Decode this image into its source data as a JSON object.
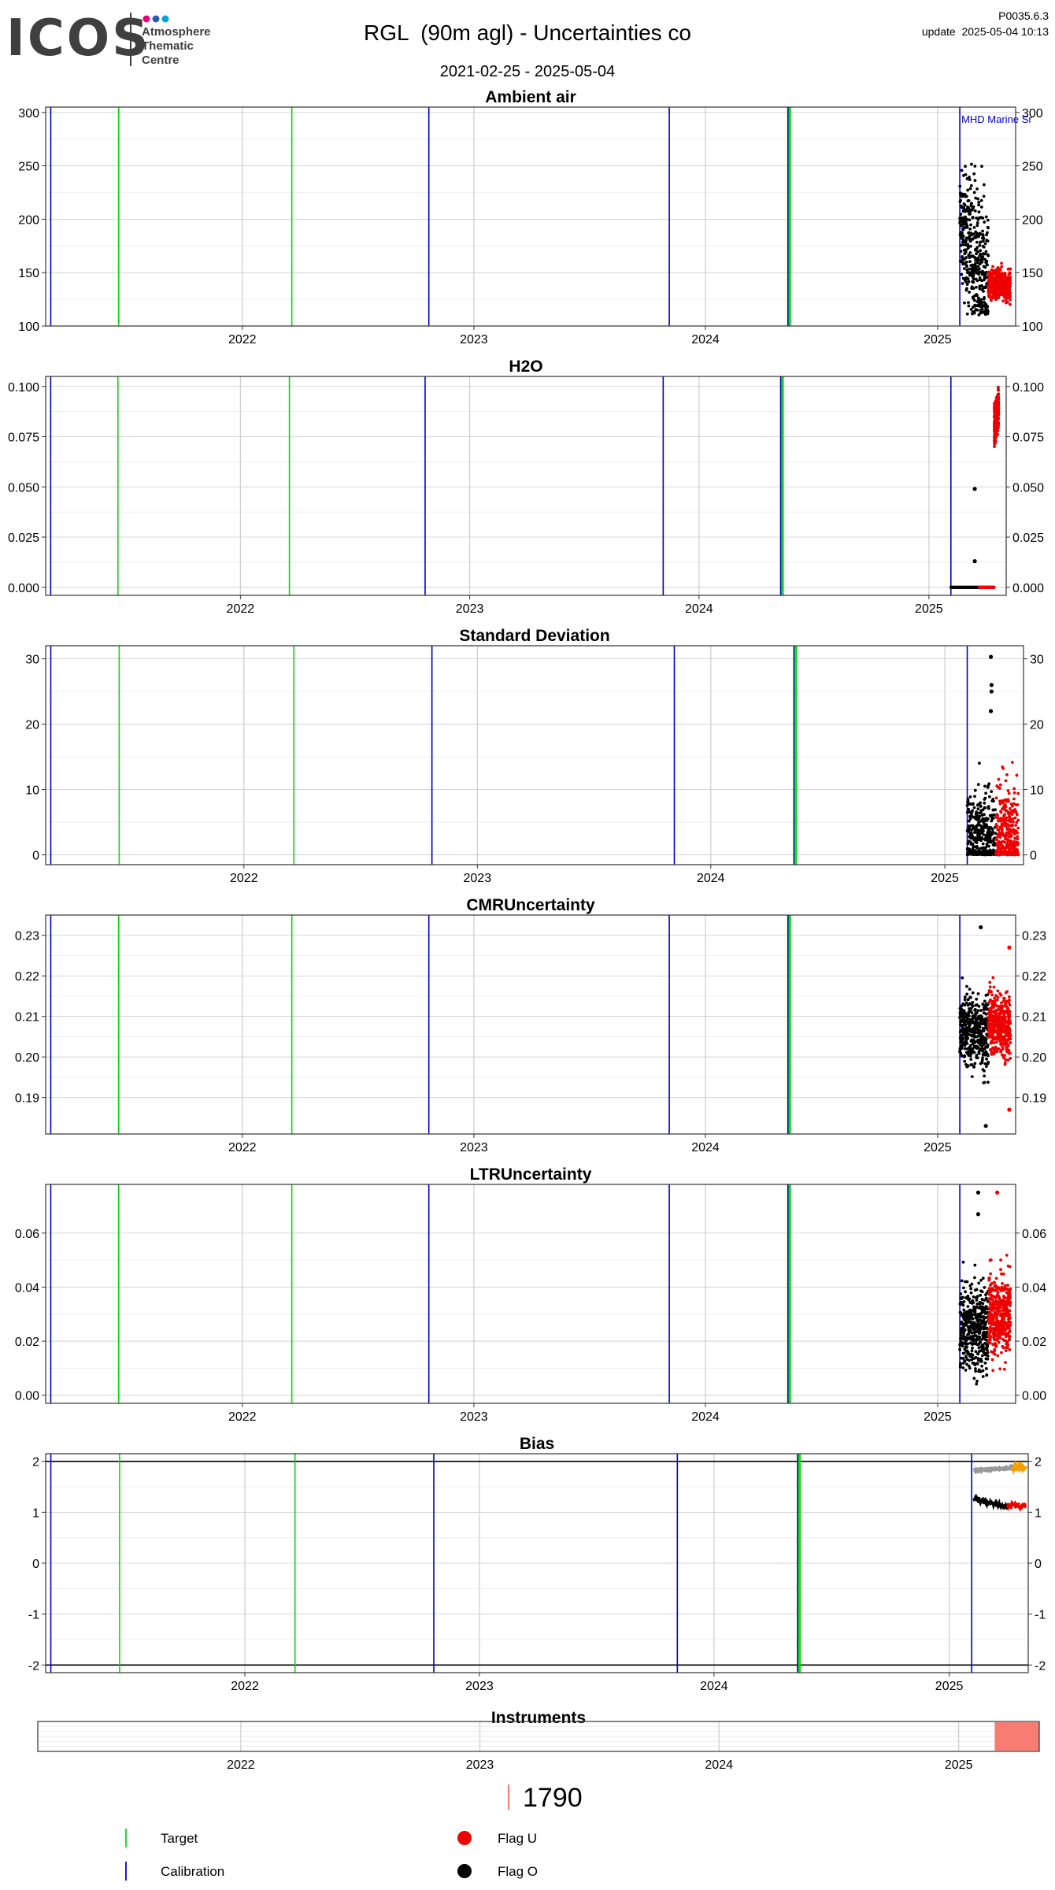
{
  "header": {
    "logo_word": "ICOS",
    "logo_lines": [
      "Atmosphere",
      "Thematic",
      "Centre"
    ],
    "logo_dot_colors": [
      "#e6007e",
      "#2a5caa",
      "#00a0dc"
    ],
    "title": "RGL  (90m agl) - Uncertainties co",
    "date_range": "2021-02-25 - 2025-05-04",
    "version": "P0035.6.3",
    "update": "update  2025-05-04 10:13"
  },
  "colors": {
    "target": "#00dd00",
    "calibration": "#0000cc",
    "flag_u": "#ee0000",
    "flag_o": "#000000",
    "bias_upper": "#999999",
    "bias_upper_recent": "#f0a000",
    "instrument": "#f87c72",
    "grid_major": "#cccccc",
    "grid_minor": "#ebebeb"
  },
  "chart_data": [
    {
      "type": "scatter",
      "title": "Ambient air",
      "x_range": [
        "2021-02-25",
        "2025-05-04"
      ],
      "x_ticks": [
        "2022",
        "2023",
        "2024",
        "2025"
      ],
      "ylim": [
        100,
        305
      ],
      "y_ticks": [
        "100",
        "150",
        "200",
        "250",
        "300"
      ],
      "y_tick_values": [
        100,
        150,
        200,
        250,
        300
      ],
      "annotation": "MHD Marine Sr",
      "series": [
        {
          "name": "Flag O",
          "x_start": "2025-02-05",
          "x_end": "2025-03-22",
          "y_min": 110,
          "y_max": 290,
          "center_start": 195,
          "center_end": 140
        },
        {
          "name": "Flag U",
          "x_start": "2025-03-22",
          "x_end": "2025-04-26",
          "y_min": 120,
          "y_max": 165,
          "center_start": 140,
          "center_end": 138
        }
      ]
    },
    {
      "type": "scatter",
      "title": "H2O",
      "x_range": [
        "2021-02-25",
        "2025-05-04"
      ],
      "x_ticks": [
        "2022",
        "2023",
        "2024",
        "2025"
      ],
      "ylim": [
        -0.004,
        0.105
      ],
      "y_ticks": [
        "0.000",
        "0.025",
        "0.050",
        "0.075",
        "0.100"
      ],
      "y_tick_values": [
        0,
        0.025,
        0.05,
        0.075,
        0.1
      ],
      "series": [
        {
          "name": "Flag O",
          "x_start": "2025-02-05",
          "x_end": "2025-03-22",
          "y_min": 0,
          "y_max": 0,
          "center_start": 0,
          "center_end": 0
        },
        {
          "name": "Flag U",
          "x_start": "2025-03-22",
          "x_end": "2025-04-15",
          "y_min": 0,
          "y_max": 0,
          "center_start": 0,
          "center_end": 0
        },
        {
          "name": "Flag U",
          "x_start": "2025-04-15",
          "x_end": "2025-04-22",
          "y_min": 0.07,
          "y_max": 0.1,
          "center_start": 0.08,
          "center_end": 0.09
        }
      ],
      "points": [
        {
          "series": "Flag O",
          "x": "2025-03-15",
          "y": 0.049
        },
        {
          "series": "Flag O",
          "x": "2025-03-15",
          "y": 0.013
        }
      ]
    },
    {
      "type": "scatter",
      "title": "Standard Deviation",
      "x_range": [
        "2021-02-25",
        "2025-05-04"
      ],
      "x_ticks": [
        "2022",
        "2023",
        "2024",
        "2025"
      ],
      "ylim": [
        -1.5,
        32
      ],
      "y_ticks": [
        "0",
        "10",
        "20",
        "30"
      ],
      "y_tick_values": [
        0,
        10,
        20,
        30
      ],
      "series": [
        {
          "name": "Flag O",
          "x_start": "2025-02-05",
          "x_end": "2025-03-22",
          "y_min": 0,
          "y_max": 17,
          "center_start": 2,
          "center_end": 2
        },
        {
          "name": "Flag U",
          "x_start": "2025-03-22",
          "x_end": "2025-04-26",
          "y_min": 0,
          "y_max": 18,
          "center_start": 1.5,
          "center_end": 1.5
        }
      ],
      "points": [
        {
          "series": "Flag O",
          "x": "2025-03-14",
          "y": 30.3
        },
        {
          "series": "Flag O",
          "x": "2025-03-15",
          "y": 26
        },
        {
          "series": "Flag O",
          "x": "2025-03-15",
          "y": 25
        },
        {
          "series": "Flag O",
          "x": "2025-03-14",
          "y": 22
        }
      ]
    },
    {
      "type": "scatter",
      "title": "CMRUncertainty",
      "x_range": [
        "2021-02-25",
        "2025-05-04"
      ],
      "x_ticks": [
        "2022",
        "2023",
        "2024",
        "2025"
      ],
      "ylim": [
        0.181,
        0.235
      ],
      "y_ticks": [
        "0.19",
        "0.20",
        "0.21",
        "0.22",
        "0.23"
      ],
      "y_tick_values": [
        0.19,
        0.2,
        0.21,
        0.22,
        0.23
      ],
      "series": [
        {
          "name": "Flag O",
          "x_start": "2025-02-05",
          "x_end": "2025-03-22",
          "y_min": 0.193,
          "y_max": 0.223,
          "center_start": 0.207,
          "center_end": 0.206
        },
        {
          "name": "Flag U",
          "x_start": "2025-03-22",
          "x_end": "2025-04-26",
          "y_min": 0.196,
          "y_max": 0.222,
          "center_start": 0.209,
          "center_end": 0.207
        }
      ],
      "points": [
        {
          "series": "Flag O",
          "x": "2025-03-10",
          "y": 0.232
        },
        {
          "series": "Flag O",
          "x": "2025-03-18",
          "y": 0.183
        },
        {
          "series": "Flag U",
          "x": "2025-04-24",
          "y": 0.227
        },
        {
          "series": "Flag U",
          "x": "2025-04-24",
          "y": 0.187
        }
      ]
    },
    {
      "type": "scatter",
      "title": "LTRUncertainty",
      "x_range": [
        "2021-02-25",
        "2025-05-04"
      ],
      "x_ticks": [
        "2022",
        "2023",
        "2024",
        "2025"
      ],
      "ylim": [
        -0.003,
        0.078
      ],
      "y_ticks": [
        "0.00",
        "0.02",
        "0.04",
        "0.06"
      ],
      "y_tick_values": [
        0,
        0.02,
        0.04,
        0.06
      ],
      "series": [
        {
          "name": "Flag O",
          "x_start": "2025-02-05",
          "x_end": "2025-03-22",
          "y_min": 0.003,
          "y_max": 0.055,
          "center_start": 0.025,
          "center_end": 0.025
        },
        {
          "name": "Flag U",
          "x_start": "2025-03-22",
          "x_end": "2025-04-26",
          "y_min": 0.008,
          "y_max": 0.058,
          "center_start": 0.03,
          "center_end": 0.03
        }
      ],
      "points": [
        {
          "series": "Flag O",
          "x": "2025-03-06",
          "y": 0.075
        },
        {
          "series": "Flag O",
          "x": "2025-03-06",
          "y": 0.067
        },
        {
          "series": "Flag U",
          "x": "2025-04-05",
          "y": 0.075
        }
      ]
    },
    {
      "type": "line",
      "title": "Bias",
      "x_range": [
        "2021-02-25",
        "2025-05-04"
      ],
      "x_ticks": [
        "2022",
        "2023",
        "2024",
        "2025"
      ],
      "ylim": [
        -2.15,
        2.15
      ],
      "y_ticks": [
        "-2",
        "-1",
        "0",
        "1",
        "2"
      ],
      "y_tick_values": [
        -2,
        -1,
        0,
        1,
        2
      ],
      "reference_lines": [
        2,
        -2
      ],
      "series": [
        {
          "name": "Flag O",
          "x_start": "2025-02-08",
          "x_end": "2025-04-02",
          "y_start": 1.25,
          "y_end": 1.1
        },
        {
          "name": "Flag U",
          "x_start": "2025-04-02",
          "x_end": "2025-04-30",
          "y_start": 1.15,
          "y_end": 1.12
        },
        {
          "name": "upper",
          "x_start": "2025-02-08",
          "x_end": "2025-04-10",
          "y_start": 1.82,
          "y_end": 1.87
        },
        {
          "name": "upper-recent",
          "x_start": "2025-04-10",
          "x_end": "2025-04-30",
          "y_start": 1.88,
          "y_end": 1.88
        }
      ]
    }
  ],
  "event_lines": {
    "target": [
      "2021-06-20",
      "2022-03-20",
      "2024-05-12",
      "2024-05-14"
    ],
    "calibration": [
      "2021-03-05",
      "2022-10-22",
      "2023-11-05",
      "2024-05-10",
      "2025-02-05"
    ]
  },
  "instruments": {
    "title": "Instruments",
    "x_ticks": [
      "2022",
      "2023",
      "2024",
      "2025"
    ],
    "bar_start": "2025-02-25",
    "bar_end": "2025-05-04",
    "bar_label": "1790"
  },
  "legend": {
    "target": "Target",
    "calibration": "Calibration",
    "flag_u": "Flag U",
    "flag_o": "Flag O"
  }
}
